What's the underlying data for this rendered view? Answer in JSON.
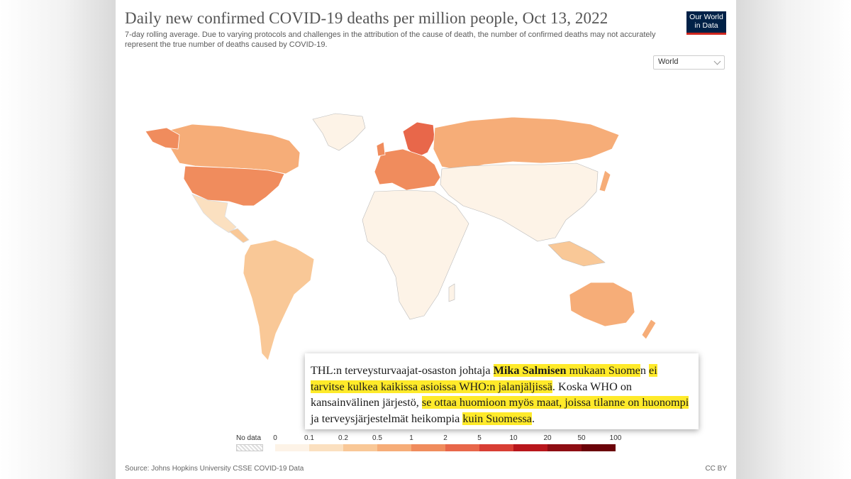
{
  "chart": {
    "title": "Daily new confirmed COVID-19 deaths per million people, Oct 13, 2022",
    "subtitle": "7-day rolling average. Due to varying protocols and challenges in the attribution of the cause of death, the number of confirmed deaths may not accurately represent the true number of deaths caused by COVID-19.",
    "logo_line1": "Our World",
    "logo_line2": "in Data",
    "region_select": "World",
    "source": "Source: Johns Hopkins University CSSE COVID-19 Data",
    "license": "CC BY"
  },
  "legend": {
    "no_data_label": "No data",
    "ticks": [
      "0",
      "0.1",
      "0.2",
      "0.5",
      "1",
      "2",
      "5",
      "10",
      "20",
      "50",
      "100"
    ],
    "colors": [
      "#fdf3e7",
      "#fbe0c0",
      "#f9c897",
      "#f6ad78",
      "#f08c5d",
      "#e8674a",
      "#d83e34",
      "#b8161c",
      "#8e0d13",
      "#6b0309"
    ]
  },
  "map_colors": {
    "north_america_usa": "#f08c5d",
    "canada": "#f6ad78",
    "mexico": "#fbe0c0",
    "south_america": "#f9c897",
    "europe": "#f08c5d",
    "nordic": "#e8674a",
    "russia": "#f6ad78",
    "africa": "#fdf3e7",
    "asia": "#fdf3e7",
    "australia": "#f6ad78"
  },
  "overlay": {
    "p1": "THL:n terveysturvaajat-osaston johtaja ",
    "p2_bold": "Mika Salmisen",
    "p3_hl": " mukaan Suome",
    "p4": "n ",
    "p5_hl": "ei tarvitse kulkea kaikissa asioissa WHO:n jalanjäljissä",
    "p6": ". Koska WHO on kansainvälinen järjestö, ",
    "p7_hl": "se ottaa huomioon myös maat, joissa tilanne on huonompi",
    "p8": " ja terveysjärjestelmät heikompia ",
    "p9_hl": "kuin Suomessa",
    "p10": "."
  }
}
